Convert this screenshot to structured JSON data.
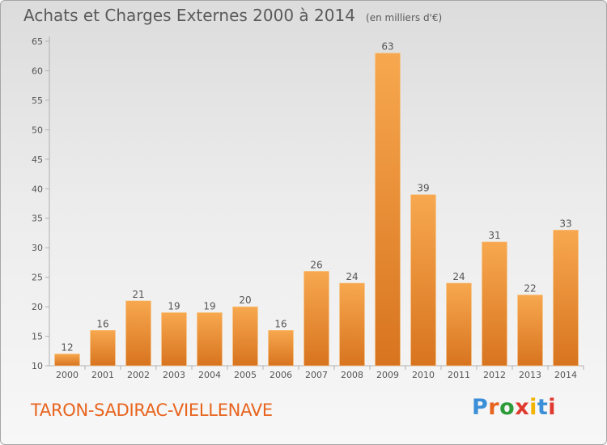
{
  "title": "Achats et Charges Externes 2000 à 2014",
  "subtitle": "(en milliers d'€)",
  "commune": "TARON-SADIRAC-VIELLENAVE",
  "brand": {
    "letters": [
      "P",
      "r",
      "o",
      "x",
      "i",
      "t",
      "i"
    ],
    "colors": [
      "#3a8fd8",
      "#e8641e",
      "#2e9b3a",
      "#e03a2e",
      "#f2b400",
      "#3a8fd8",
      "#e03a2e"
    ]
  },
  "colors": {
    "bar_top": "#f7a84f",
    "bar_bottom": "#d8741f",
    "axis": "#b0b0b0",
    "text": "#555555",
    "commune": "#e8641e"
  },
  "chart_data": {
    "type": "bar",
    "categories": [
      "2000",
      "2001",
      "2002",
      "2003",
      "2004",
      "2005",
      "2006",
      "2007",
      "2008",
      "2009",
      "2010",
      "2011",
      "2012",
      "2013",
      "2014"
    ],
    "values": [
      12,
      16,
      21,
      19,
      19,
      20,
      16,
      26,
      24,
      63,
      39,
      24,
      31,
      22,
      33
    ],
    "ylim": [
      10,
      65
    ],
    "yticks": [
      10,
      15,
      20,
      25,
      30,
      35,
      40,
      45,
      50,
      55,
      60,
      65
    ],
    "grid": false,
    "data_labels": true
  }
}
